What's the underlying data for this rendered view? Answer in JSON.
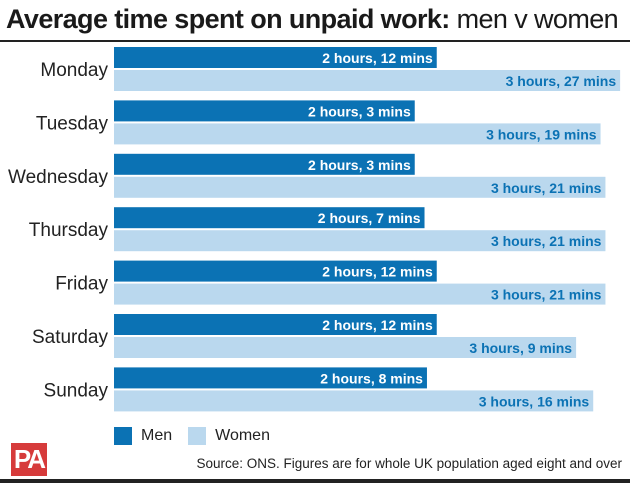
{
  "title_bold": "Average time spent on unpaid work:",
  "title_light": " men v women",
  "chart_data": {
    "type": "bar",
    "orientation": "horizontal",
    "categories": [
      "Monday",
      "Tuesday",
      "Wednesday",
      "Thursday",
      "Friday",
      "Saturday",
      "Sunday"
    ],
    "unit": "minutes",
    "series": [
      {
        "name": "Men",
        "color": "#0b72b4",
        "values": [
          132,
          123,
          123,
          127,
          132,
          132,
          128
        ],
        "labels": [
          "2 hours, 12 mins",
          "2 hours, 3 mins",
          "2 hours, 3 mins",
          "2 hours, 7 mins",
          "2 hours, 12 mins",
          "2 hours, 12 mins",
          "2 hours, 8 mins"
        ]
      },
      {
        "name": "Women",
        "color": "#bad8ee",
        "values": [
          207,
          199,
          201,
          201,
          201,
          189,
          196
        ],
        "labels": [
          "3 hours, 27 mins",
          "3 hours, 19 mins",
          "3 hours, 21 mins",
          "3 hours, 21 mins",
          "3 hours, 21 mins",
          "3 hours, 9 mins",
          "3 hours, 16 mins"
        ]
      }
    ],
    "legend_position": "bottom-left",
    "grid": false
  },
  "legend": {
    "men": "Men",
    "women": "Women"
  },
  "logo": "PA",
  "source": "Source: ONS. Figures are for whole UK population aged eight and over"
}
